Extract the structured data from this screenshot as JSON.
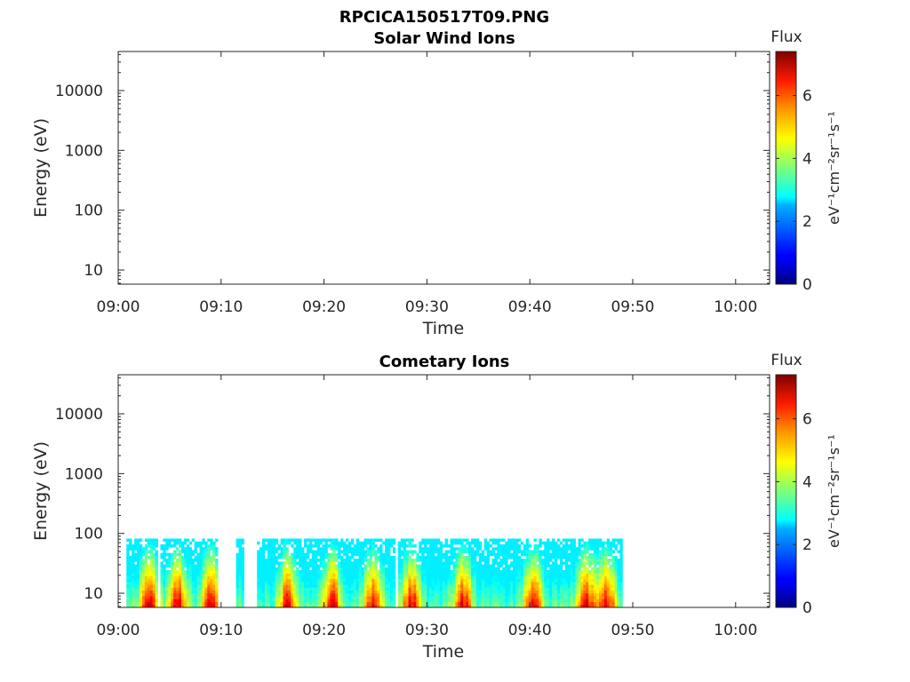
{
  "figure": {
    "filename": "RPCICA150517T09.PNG"
  },
  "chart_data": [
    {
      "type": "heatmap",
      "title": "Solar Wind Ions",
      "xlabel": "Time",
      "ylabel": "Energy (eV)",
      "x_ticks": [
        "09:00",
        "09:10",
        "09:20",
        "09:30",
        "09:40",
        "09:50",
        "10:00"
      ],
      "x_range_minutes": [
        0,
        63.3
      ],
      "y_scale": "log",
      "y_ticks": [
        "10",
        "100",
        "1000",
        "10000"
      ],
      "y_range": [
        5.8,
        45000
      ],
      "colorbar": {
        "label": "Flux",
        "unit_label": "eV⁻¹cm⁻²sr⁻¹s⁻¹",
        "ticks": [
          "0",
          "2",
          "4",
          "6"
        ],
        "range": [
          0,
          7.4
        ],
        "colormap": "jet"
      },
      "data": []
    },
    {
      "type": "heatmap",
      "title": "Cometary Ions",
      "xlabel": "Time",
      "ylabel": "Energy (eV)",
      "x_ticks": [
        "09:00",
        "09:10",
        "09:20",
        "09:30",
        "09:40",
        "09:50",
        "10:00"
      ],
      "x_range_minutes": [
        0,
        63.3
      ],
      "y_scale": "log",
      "y_ticks": [
        "10",
        "100",
        "1000",
        "10000"
      ],
      "y_range": [
        5.8,
        45000
      ],
      "colorbar": {
        "label": "Flux",
        "unit_label": "eV⁻¹cm⁻²sr⁻¹s⁻¹",
        "ticks": [
          "0",
          "2",
          "4",
          "6"
        ],
        "range": [
          0,
          7.4
        ],
        "colormap": "jet"
      },
      "data_extent": {
        "time_minutes": [
          0.8,
          49.0
        ],
        "energy_ev": [
          5.8,
          82
        ]
      },
      "gaps_minutes": [
        [
          3.9,
          4.1
        ],
        [
          9.7,
          11.4
        ],
        [
          12.3,
          13.4
        ],
        [
          26.9,
          27.3
        ]
      ],
      "peak_flux_minutes": [
        3.0,
        5.8,
        9.0,
        16.5,
        20.8,
        24.8,
        28.5,
        33.5,
        40.3,
        45.5,
        47.5
      ]
    }
  ]
}
